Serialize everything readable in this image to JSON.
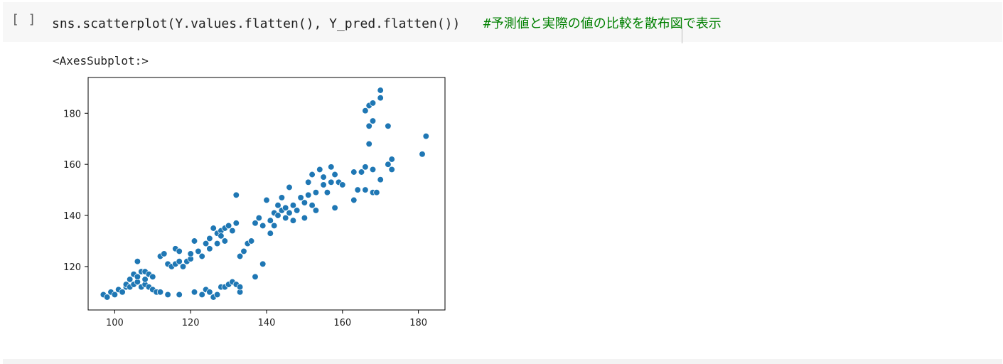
{
  "cell": {
    "run_label": "[ ]",
    "code": "sns.scatterplot(Y.values.flatten(), Y_pred.flatten())",
    "comment": "#予測値と実際の値の比較を散布図で表示"
  },
  "output": {
    "repr": "<AxesSubplot:>"
  },
  "colors": {
    "point": "#1f77b4",
    "comment": "#008000"
  },
  "chart_data": {
    "type": "scatter",
    "title": "",
    "xlabel": "",
    "ylabel": "",
    "xlim": [
      93,
      187
    ],
    "ylim": [
      103,
      194
    ],
    "xticks": [
      100,
      120,
      140,
      160,
      180
    ],
    "yticks": [
      120,
      140,
      160,
      180
    ],
    "grid": false,
    "points": [
      [
        97,
        109
      ],
      [
        98,
        108
      ],
      [
        99,
        110
      ],
      [
        100,
        109
      ],
      [
        101,
        111
      ],
      [
        102,
        110
      ],
      [
        103,
        112
      ],
      [
        103,
        113
      ],
      [
        104,
        112
      ],
      [
        104,
        115
      ],
      [
        105,
        113
      ],
      [
        105,
        117
      ],
      [
        106,
        114
      ],
      [
        106,
        116
      ],
      [
        106,
        122
      ],
      [
        107,
        112
      ],
      [
        107,
        118
      ],
      [
        108,
        113
      ],
      [
        108,
        115
      ],
      [
        108,
        118
      ],
      [
        109,
        112
      ],
      [
        109,
        117
      ],
      [
        110,
        111
      ],
      [
        110,
        116
      ],
      [
        111,
        110
      ],
      [
        112,
        124
      ],
      [
        113,
        125
      ],
      [
        114,
        121
      ],
      [
        115,
        120
      ],
      [
        116,
        121
      ],
      [
        116,
        127
      ],
      [
        117,
        122
      ],
      [
        117,
        126
      ],
      [
        118,
        120
      ],
      [
        119,
        122
      ],
      [
        120,
        123
      ],
      [
        120,
        125
      ],
      [
        121,
        130
      ],
      [
        122,
        126
      ],
      [
        123,
        124
      ],
      [
        124,
        129
      ],
      [
        125,
        131
      ],
      [
        125,
        127
      ],
      [
        126,
        135
      ],
      [
        127,
        129
      ],
      [
        127,
        133
      ],
      [
        128,
        134
      ],
      [
        128,
        132
      ],
      [
        129,
        135
      ],
      [
        129,
        130
      ],
      [
        130,
        136
      ],
      [
        131,
        134
      ],
      [
        132,
        137
      ],
      [
        132,
        148
      ],
      [
        133,
        124
      ],
      [
        134,
        126
      ],
      [
        135,
        129
      ],
      [
        136,
        130
      ],
      [
        133,
        110
      ],
      [
        112,
        110
      ],
      [
        114,
        109
      ],
      [
        117,
        109
      ],
      [
        121,
        110
      ],
      [
        123,
        109
      ],
      [
        124,
        111
      ],
      [
        125,
        110
      ],
      [
        126,
        108
      ],
      [
        127,
        109
      ],
      [
        128,
        112
      ],
      [
        129,
        112
      ],
      [
        130,
        113
      ],
      [
        131,
        114
      ],
      [
        132,
        113
      ],
      [
        133,
        112
      ],
      [
        137,
        116
      ],
      [
        139,
        121
      ],
      [
        137,
        137
      ],
      [
        138,
        139
      ],
      [
        139,
        136
      ],
      [
        140,
        146
      ],
      [
        141,
        138
      ],
      [
        141,
        133
      ],
      [
        142,
        141
      ],
      [
        142,
        136
      ],
      [
        143,
        144
      ],
      [
        143,
        140
      ],
      [
        144,
        142
      ],
      [
        144,
        147
      ],
      [
        145,
        139
      ],
      [
        145,
        143
      ],
      [
        146,
        141
      ],
      [
        146,
        151
      ],
      [
        147,
        138
      ],
      [
        147,
        144
      ],
      [
        148,
        142
      ],
      [
        149,
        147
      ],
      [
        150,
        139
      ],
      [
        150,
        145
      ],
      [
        151,
        148
      ],
      [
        151,
        153
      ],
      [
        152,
        144
      ],
      [
        152,
        156
      ],
      [
        153,
        149
      ],
      [
        153,
        142
      ],
      [
        154,
        158
      ],
      [
        155,
        155
      ],
      [
        155,
        152
      ],
      [
        156,
        149
      ],
      [
        157,
        159
      ],
      [
        157,
        153
      ],
      [
        158,
        156
      ],
      [
        158,
        143
      ],
      [
        159,
        153
      ],
      [
        160,
        152
      ],
      [
        163,
        157
      ],
      [
        163,
        146
      ],
      [
        164,
        150
      ],
      [
        165,
        157
      ],
      [
        166,
        181
      ],
      [
        166,
        159
      ],
      [
        166,
        150
      ],
      [
        167,
        183
      ],
      [
        167,
        175
      ],
      [
        167,
        168
      ],
      [
        168,
        184
      ],
      [
        168,
        177
      ],
      [
        168,
        158
      ],
      [
        168,
        149
      ],
      [
        169,
        149
      ],
      [
        170,
        189
      ],
      [
        170,
        186
      ],
      [
        170,
        154
      ],
      [
        172,
        175
      ],
      [
        172,
        160
      ],
      [
        173,
        162
      ],
      [
        173,
        158
      ],
      [
        181,
        164
      ],
      [
        182,
        171
      ]
    ]
  }
}
